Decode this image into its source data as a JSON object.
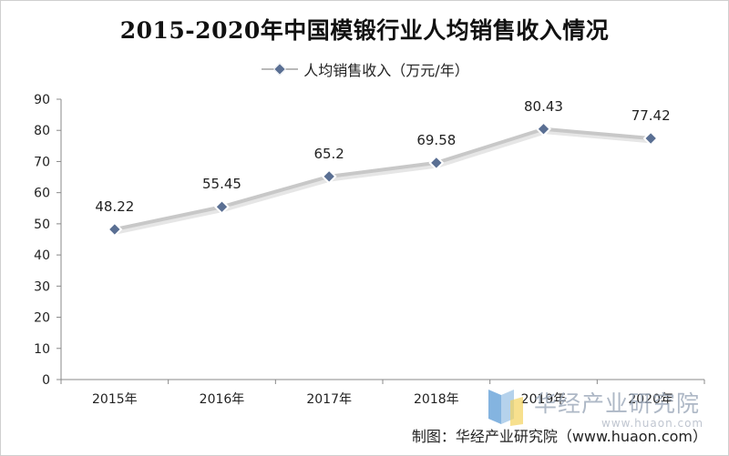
{
  "chart_data": {
    "type": "line",
    "title": "2015-2020年中国模锻行业人均销售收入情况",
    "categories": [
      "2015年",
      "2016年",
      "2017年",
      "2018年",
      "2019年",
      "2020年"
    ],
    "series": [
      {
        "name": "人均销售收入（万元/年）",
        "values": [
          48.22,
          55.45,
          65.2,
          69.58,
          80.43,
          77.42
        ]
      }
    ],
    "data_labels": [
      "48.22",
      "55.45",
      "65.2",
      "69.58",
      "80.43",
      "77.42"
    ],
    "ylim": [
      0,
      90
    ],
    "yticks": [
      0,
      10,
      20,
      30,
      40,
      50,
      60,
      70,
      80,
      90
    ],
    "xlabel": "",
    "ylabel": "",
    "grid": false,
    "legend_position": "top-center"
  },
  "colors": {
    "line": "#c8c8c8",
    "marker": "#5a6f93",
    "axis": "#888888"
  },
  "watermark": {
    "name": "华经产业研究院",
    "url": "www.huaon.com"
  },
  "source": "制图：华经产业研究院（www.huaon.com）"
}
